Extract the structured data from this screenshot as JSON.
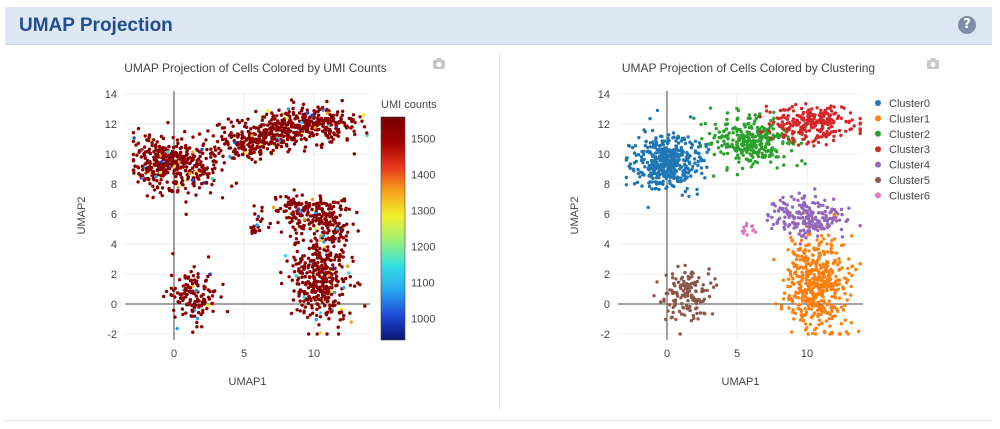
{
  "header": {
    "title": "UMAP Projection",
    "help_label": "?"
  },
  "colors": {
    "header_bg": "#dde6f3",
    "title": "#1f4f8f",
    "cluster": [
      "#1f77b4",
      "#ff7f0e",
      "#2ca02c",
      "#d62728",
      "#9467bd",
      "#8c564b",
      "#e377c2"
    ],
    "umi_point": "#8b0000",
    "colorscale": [
      "#0a1470",
      "#1e4bd8",
      "#2aa6f0",
      "#31e0e0",
      "#9ef07a",
      "#f0f02a",
      "#f7a21c",
      "#e8341c",
      "#a00000",
      "#7a0000"
    ]
  },
  "chart_data": [
    {
      "type": "scatter",
      "title": "UMAP Projection of Cells Colored by UMI Counts",
      "xlabel": "UMAP1",
      "ylabel": "UMAP2",
      "xlim": [
        -3.5,
        14
      ],
      "ylim": [
        -2.4,
        14.2
      ],
      "xticks": [
        0,
        5,
        10
      ],
      "yticks": [
        -2,
        0,
        2,
        4,
        6,
        8,
        10,
        12,
        14
      ],
      "grid": true,
      "colorbar": {
        "title": "UMI counts",
        "ticks": [
          1000,
          1100,
          1200,
          1300,
          1400,
          1500
        ],
        "range": [
          940,
          1560
        ]
      },
      "series": [
        {
          "color_by": "UMI counts",
          "region_estimates": [
            {
              "cx": -1.0,
              "cy": 9.4,
              "sx": 1.0,
              "sy": 0.9,
              "n": 260
            },
            {
              "cx": 1.5,
              "cy": 9.2,
              "sx": 1.1,
              "sy": 0.8,
              "n": 170
            },
            {
              "cx": 5.2,
              "cy": 10.8,
              "sx": 1.0,
              "sy": 0.6,
              "n": 150
            },
            {
              "cx": 7.3,
              "cy": 11.5,
              "sx": 1.0,
              "sy": 0.6,
              "n": 180
            },
            {
              "cx": 10.3,
              "cy": 12.0,
              "sx": 1.5,
              "sy": 0.6,
              "n": 240
            },
            {
              "cx": 9.2,
              "cy": 6.3,
              "sx": 1.3,
              "sy": 0.5,
              "n": 130
            },
            {
              "cx": 10.8,
              "cy": 5.2,
              "sx": 0.9,
              "sy": 0.8,
              "n": 110
            },
            {
              "cx": 10.6,
              "cy": 2.0,
              "sx": 1.1,
              "sy": 1.6,
              "n": 380
            },
            {
              "cx": 1.5,
              "cy": 0.5,
              "sx": 0.8,
              "sy": 0.8,
              "n": 140
            },
            {
              "cx": 5.8,
              "cy": 5.0,
              "sx": 0.2,
              "sy": 0.2,
              "n": 12
            }
          ]
        }
      ]
    },
    {
      "type": "scatter",
      "title": "UMAP Projection of Cells Colored by Clustering",
      "xlabel": "UMAP1",
      "ylabel": "UMAP2",
      "xlim": [
        -3.5,
        14
      ],
      "ylim": [
        -2.4,
        14.2
      ],
      "xticks": [
        0,
        5,
        10
      ],
      "yticks": [
        -2,
        0,
        2,
        4,
        6,
        8,
        10,
        12,
        14
      ],
      "grid": true,
      "legend": "right",
      "series": [
        {
          "name": "Cluster0",
          "cx": 0.0,
          "cy": 9.5,
          "sx": 1.2,
          "sy": 0.9,
          "n": 420
        },
        {
          "name": "Cluster1",
          "cx": 10.7,
          "cy": 1.5,
          "sx": 1.1,
          "sy": 1.6,
          "n": 460
        },
        {
          "name": "Cluster2",
          "cx": 6.0,
          "cy": 10.8,
          "sx": 1.4,
          "sy": 0.8,
          "n": 300
        },
        {
          "name": "Cluster3",
          "cx": 10.5,
          "cy": 12.0,
          "sx": 1.5,
          "sy": 0.6,
          "n": 250
        },
        {
          "name": "Cluster4",
          "cx": 10.0,
          "cy": 5.8,
          "sx": 1.3,
          "sy": 0.7,
          "n": 200
        },
        {
          "name": "Cluster5",
          "cx": 1.4,
          "cy": 0.6,
          "sx": 0.8,
          "sy": 0.8,
          "n": 140
        },
        {
          "name": "Cluster6",
          "cx": 5.8,
          "cy": 5.0,
          "sx": 0.25,
          "sy": 0.25,
          "n": 12
        }
      ]
    }
  ]
}
